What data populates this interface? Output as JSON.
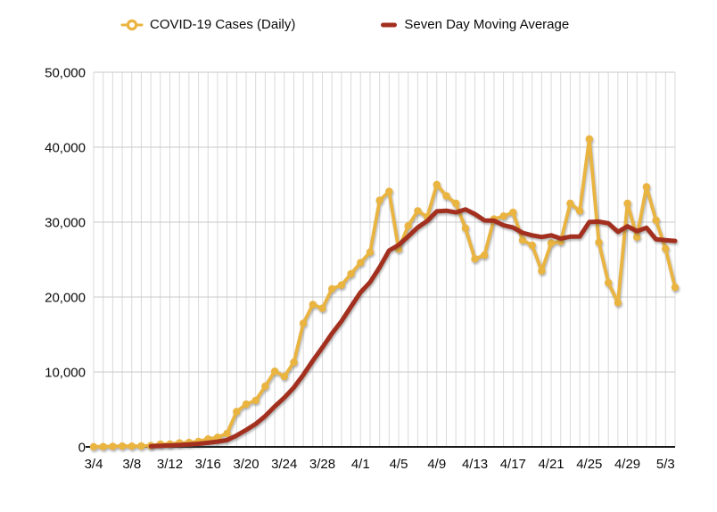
{
  "chart_data": {
    "type": "line",
    "title": "",
    "x_dates": [
      "3/4",
      "3/5",
      "3/6",
      "3/7",
      "3/8",
      "3/9",
      "3/10",
      "3/11",
      "3/12",
      "3/13",
      "3/14",
      "3/15",
      "3/16",
      "3/17",
      "3/18",
      "3/19",
      "3/20",
      "3/21",
      "3/22",
      "3/23",
      "3/24",
      "3/25",
      "3/26",
      "3/27",
      "3/28",
      "3/29",
      "3/30",
      "3/31",
      "4/1",
      "4/2",
      "4/3",
      "4/4",
      "4/5",
      "4/6",
      "4/7",
      "4/8",
      "4/9",
      "4/10",
      "4/11",
      "4/12",
      "4/13",
      "4/14",
      "4/15",
      "4/16",
      "4/17",
      "4/18",
      "4/19",
      "4/20",
      "4/21",
      "4/22",
      "4/23",
      "4/24",
      "4/25",
      "4/26",
      "4/27",
      "4/28",
      "4/29",
      "4/30",
      "5/1",
      "5/2",
      "5/3",
      "5/4"
    ],
    "x_tick_labels": [
      "3/4",
      "3/8",
      "3/12",
      "3/16",
      "3/20",
      "3/24",
      "3/28",
      "4/1",
      "4/5",
      "4/9",
      "4/13",
      "4/17",
      "4/21",
      "4/25",
      "4/29",
      "5/3"
    ],
    "x_tick_interval": 4,
    "ylim": [
      0,
      50000
    ],
    "y_tick_step": 10000,
    "y_tick_labels": [
      "0",
      "10,000",
      "20,000",
      "30,000",
      "40,000",
      "50,000"
    ],
    "grid": "both",
    "legend_position": "top",
    "series": [
      {
        "name": "COVID-19 Cases (Daily)",
        "type": "line",
        "marker": "circle",
        "color": "#EAB440",
        "values": [
          22,
          34,
          74,
          105,
          95,
          123,
          170,
          368,
          382,
          518,
          585,
          732,
          1049,
          1268,
          1800,
          4700,
          5700,
          6200,
          8100,
          10100,
          9400,
          11300,
          16500,
          19000,
          18500,
          21100,
          21600,
          23100,
          24600,
          26000,
          32900,
          34100,
          26400,
          29500,
          31500,
          30700,
          35000,
          33500,
          32500,
          29200,
          25100,
          25600,
          30400,
          30800,
          31300,
          27600,
          26900,
          23500,
          27200,
          27400,
          32500,
          31500,
          41100,
          27300,
          21900,
          19250,
          32500,
          28000,
          34700,
          30250,
          26450,
          21300
        ]
      },
      {
        "name": "Seven Day Moving Average",
        "type": "line",
        "marker": "none",
        "color": "#A3301F",
        "values": [
          null,
          null,
          null,
          null,
          null,
          null,
          89,
          138,
          188,
          252,
          320,
          411,
          543,
          700,
          905,
          1522,
          2262,
          3064,
          4117,
          5410,
          6571,
          7929,
          9614,
          11514,
          13271,
          15129,
          16771,
          18729,
          20629,
          21986,
          23971,
          26200,
          26957,
          28086,
          29286,
          30157,
          31443,
          31529,
          31300,
          31700,
          31071,
          30229,
          30186,
          29586,
          29271,
          28571,
          28243,
          28014,
          28243,
          27814,
          28057,
          28086,
          30014,
          30071,
          29843,
          28707,
          29436,
          28793,
          29250,
          27700,
          27579,
          27493
        ]
      }
    ]
  },
  "colors": {
    "background": "#FFFFFF",
    "grid_vertical": "#D9D9D9",
    "grid_horizontal": "#C9C9C9",
    "axis": "#1A1A1A",
    "tick_text": "#0B0B0B",
    "daily_series": "#EAB440",
    "average_series": "#A3301F"
  }
}
